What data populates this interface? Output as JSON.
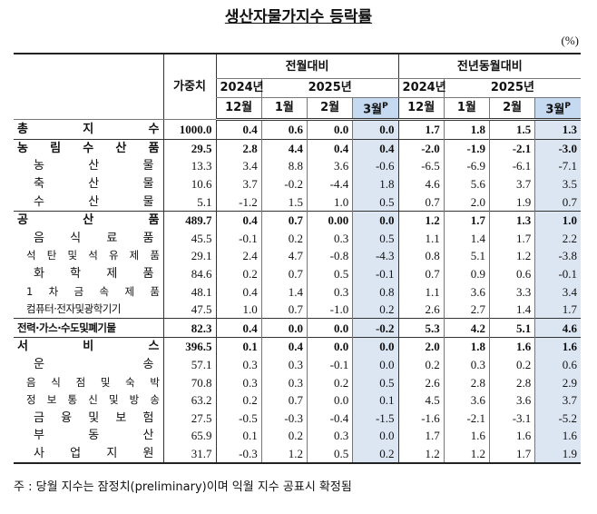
{
  "title": "생산자물가지수 등락률",
  "unit": "(%)",
  "header": {
    "weight": "가중치",
    "mom": "전월대비",
    "yoy": "전년동월대비",
    "years": [
      "2024년",
      "2025년"
    ],
    "months": [
      "12월",
      "1월",
      "2월",
      "3월"
    ],
    "prelim": "P"
  },
  "rows": [
    {
      "label": "총 지 수",
      "weight": "1000.0",
      "mom": [
        "0.4",
        "0.6",
        "0.0",
        "0.0"
      ],
      "yoy": [
        "1.7",
        "1.8",
        "1.5",
        "1.3"
      ],
      "bold": true
    },
    {
      "label": "농 림 수 산 품",
      "weight": "29.5",
      "mom": [
        "2.8",
        "4.4",
        "0.4",
        "0.4"
      ],
      "yoy": [
        "-2.0",
        "-1.9",
        "-2.1",
        "-3.0"
      ],
      "bold": true
    },
    {
      "label": "농 산 물",
      "weight": "13.3",
      "mom": [
        "3.4",
        "8.8",
        "3.6",
        "-0.6"
      ],
      "yoy": [
        "-6.5",
        "-6.9",
        "-6.1",
        "-7.1"
      ],
      "bold": false
    },
    {
      "label": "축 산 물",
      "weight": "10.6",
      "mom": [
        "3.7",
        "-0.2",
        "-4.4",
        "1.8"
      ],
      "yoy": [
        "4.6",
        "5.6",
        "3.7",
        "3.5"
      ],
      "bold": false
    },
    {
      "label": "수 산 물",
      "weight": "5.1",
      "mom": [
        "-1.2",
        "1.5",
        "1.0",
        "0.5"
      ],
      "yoy": [
        "0.7",
        "2.0",
        "1.9",
        "0.7"
      ],
      "bold": false
    },
    {
      "label": "공 산 품",
      "weight": "489.7",
      "mom": [
        "0.4",
        "0.7",
        "0.00",
        "0.0"
      ],
      "yoy": [
        "1.2",
        "1.7",
        "1.3",
        "1.0"
      ],
      "bold": true
    },
    {
      "label": "음 식 료 품",
      "weight": "45.5",
      "mom": [
        "-0.1",
        "0.2",
        "0.3",
        "0.5"
      ],
      "yoy": [
        "1.1",
        "1.4",
        "1.7",
        "2.2"
      ],
      "bold": false
    },
    {
      "label": "석 탄 및 석 유 제 품",
      "weight": "29.1",
      "mom": [
        "2.4",
        "4.7",
        "-0.8",
        "-4.3"
      ],
      "yoy": [
        "0.8",
        "5.1",
        "1.2",
        "-3.8"
      ],
      "bold": false
    },
    {
      "label": "화 학 제 품",
      "weight": "84.6",
      "mom": [
        "0.2",
        "0.7",
        "0.5",
        "-0.1"
      ],
      "yoy": [
        "0.7",
        "0.9",
        "0.6",
        "-0.1"
      ],
      "bold": false
    },
    {
      "label": "1 차 금 속 제 품",
      "weight": "48.1",
      "mom": [
        "0.4",
        "1.4",
        "0.3",
        "0.8"
      ],
      "yoy": [
        "1.1",
        "3.6",
        "3.3",
        "3.4"
      ],
      "bold": false
    },
    {
      "label": "컴퓨터·전자및광학기기",
      "weight": "47.5",
      "mom": [
        "1.0",
        "0.7",
        "-1.0",
        "0.2"
      ],
      "yoy": [
        "2.6",
        "2.7",
        "1.4",
        "1.7"
      ],
      "bold": false
    },
    {
      "label": "전력·가스·수도및폐기물",
      "weight": "82.3",
      "mom": [
        "0.4",
        "0.0",
        "0.0",
        "-0.2"
      ],
      "yoy": [
        "5.3",
        "4.2",
        "5.1",
        "4.6"
      ],
      "bold": true
    },
    {
      "label": "서 비 스",
      "weight": "396.5",
      "mom": [
        "0.1",
        "0.4",
        "0.0",
        "0.0"
      ],
      "yoy": [
        "2.0",
        "1.8",
        "1.6",
        "1.6"
      ],
      "bold": true
    },
    {
      "label": "운 송",
      "weight": "57.1",
      "mom": [
        "0.3",
        "0.3",
        "-0.1",
        "0.0"
      ],
      "yoy": [
        "0.2",
        "0.3",
        "0.2",
        "0.6"
      ],
      "bold": false
    },
    {
      "label": "음 식 점 및 숙 박",
      "weight": "70.8",
      "mom": [
        "0.3",
        "0.3",
        "0.2",
        "0.5"
      ],
      "yoy": [
        "2.6",
        "2.8",
        "2.8",
        "2.9"
      ],
      "bold": false
    },
    {
      "label": "정 보 통 신 및 방 송",
      "weight": "63.2",
      "mom": [
        "0.2",
        "0.7",
        "0.0",
        "0.1"
      ],
      "yoy": [
        "4.5",
        "3.6",
        "3.6",
        "3.7"
      ],
      "bold": false
    },
    {
      "label": "금 융 및 보 험",
      "weight": "27.5",
      "mom": [
        "-0.5",
        "-0.3",
        "-0.4",
        "-1.5"
      ],
      "yoy": [
        "-1.6",
        "-2.1",
        "-3.1",
        "-5.2"
      ],
      "bold": false
    },
    {
      "label": "부 동 산",
      "weight": "65.9",
      "mom": [
        "0.1",
        "0.2",
        "0.3",
        "0.0"
      ],
      "yoy": [
        "1.7",
        "1.6",
        "1.6",
        "1.6"
      ],
      "bold": false
    },
    {
      "label": "사 업 지 원",
      "weight": "31.7",
      "mom": [
        "-0.3",
        "1.2",
        "0.5",
        "0.2"
      ],
      "yoy": [
        "1.2",
        "1.2",
        "1.7",
        "1.9"
      ],
      "bold": false
    }
  ],
  "footnote": "주 : 당월 지수는 잠정치(preliminary)이며 익월 지수 공표시 확정됨"
}
